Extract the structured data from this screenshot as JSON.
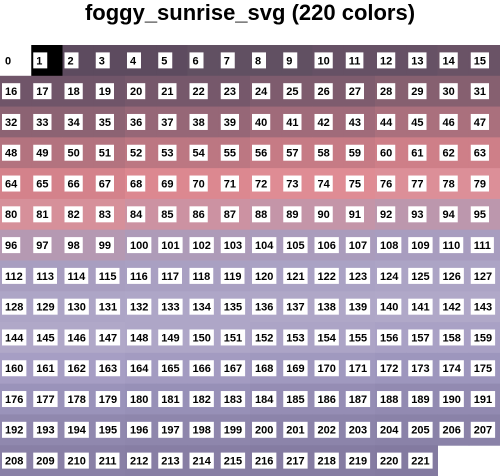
{
  "title": "foggy_sunrise_svg (220 colors)",
  "cells": {
    "labels": [
      0,
      1,
      2,
      3,
      4,
      5,
      6,
      7,
      8,
      9,
      10,
      11,
      12,
      13,
      14,
      15,
      16,
      17,
      18,
      19,
      20,
      21,
      22,
      23,
      24,
      25,
      26,
      27,
      28,
      29,
      30,
      31,
      32,
      33,
      34,
      35,
      36,
      37,
      38,
      39,
      40,
      41,
      42,
      43,
      44,
      45,
      46,
      47,
      48,
      49,
      50,
      51,
      52,
      53,
      54,
      55,
      56,
      57,
      58,
      59,
      60,
      61,
      62,
      63,
      64,
      65,
      66,
      67,
      68,
      69,
      70,
      71,
      72,
      73,
      74,
      75,
      76,
      77,
      78,
      79,
      80,
      81,
      82,
      83,
      84,
      85,
      86,
      87,
      88,
      89,
      90,
      91,
      92,
      93,
      94,
      95,
      96,
      97,
      98,
      99,
      100,
      101,
      102,
      103,
      104,
      105,
      106,
      107,
      108,
      109,
      110,
      111,
      112,
      113,
      114,
      115,
      116,
      117,
      118,
      119,
      120,
      121,
      122,
      123,
      124,
      125,
      126,
      127,
      128,
      129,
      130,
      131,
      132,
      133,
      134,
      135,
      136,
      137,
      138,
      139,
      140,
      141,
      142,
      143,
      144,
      145,
      146,
      147,
      148,
      149,
      150,
      151,
      152,
      153,
      154,
      155,
      156,
      157,
      158,
      159,
      160,
      161,
      162,
      163,
      164,
      165,
      166,
      167,
      168,
      169,
      170,
      171,
      172,
      173,
      174,
      175,
      176,
      177,
      178,
      179,
      180,
      181,
      182,
      183,
      184,
      185,
      186,
      187,
      188,
      189,
      190,
      191,
      192,
      193,
      194,
      195,
      196,
      197,
      198,
      199,
      200,
      201,
      202,
      203,
      204,
      205,
      206,
      207,
      208,
      209,
      210,
      211,
      212,
      213,
      214,
      215,
      216,
      217,
      218,
      219,
      220,
      221
    ],
    "colors": [
      "#ffffff",
      "#000000",
      "#5d4b5f",
      "#5d4b5f",
      "#5d4b5f",
      "#5d4b5f",
      "#615062",
      "#615062",
      "#615062",
      "#615062",
      "#665165",
      "#665165",
      "#665165",
      "#665165",
      "#6a5366",
      "#6a5366",
      "#705569",
      "#705569",
      "#705569",
      "#705569",
      "#76586b",
      "#76586b",
      "#76586b",
      "#76586b",
      "#7e5c6e",
      "#7e5c6e",
      "#7e5c6e",
      "#7e5c6e",
      "#866070",
      "#866070",
      "#866070",
      "#866070",
      "#8c6373",
      "#8c6373",
      "#8c6373",
      "#8c6373",
      "#966777",
      "#966777",
      "#966777",
      "#966777",
      "#a06b7a",
      "#a06b7a",
      "#a06b7a",
      "#a06b7a",
      "#aa707d",
      "#aa707d",
      "#aa707d",
      "#aa707d",
      "#b3737f",
      "#b3737f",
      "#b3737f",
      "#b3737f",
      "#bc7782",
      "#bc7782",
      "#bc7782",
      "#bc7782",
      "#c67b85",
      "#c67b85",
      "#c67b85",
      "#c67b85",
      "#ce7f88",
      "#ce7f88",
      "#ce7f88",
      "#ce7f88",
      "#d4828b",
      "#d4828b",
      "#d4828b",
      "#d4828b",
      "#dc8890",
      "#dc8890",
      "#dc8890",
      "#dc8890",
      "#df8c94",
      "#df8c94",
      "#df8c94",
      "#df8c94",
      "#dc8f98",
      "#dc8f98",
      "#dc8f98",
      "#dc8f98",
      "#d6909a",
      "#d6909a",
      "#d6909a",
      "#d6909a",
      "#cc92a2",
      "#cc92a2",
      "#cc92a2",
      "#cc92a2",
      "#c495a8",
      "#c495a8",
      "#c495a8",
      "#c495a8",
      "#bc97ad",
      "#bc97ad",
      "#bc97ad",
      "#bc97ad",
      "#b599b2",
      "#b599b2",
      "#b599b2",
      "#b599b2",
      "#ae9bb8",
      "#ae9bb8",
      "#ae9bb8",
      "#ae9bb8",
      "#aa9cbc",
      "#aa9cbc",
      "#aa9cbc",
      "#aa9cbc",
      "#a89dbf",
      "#a89dbf",
      "#a89dbf",
      "#a89dbf",
      "#a89ec0",
      "#a89ec0",
      "#a89ec0",
      "#a89ec0",
      "#a9a0c2",
      "#a9a0c2",
      "#a9a0c2",
      "#a9a0c2",
      "#aaa2c4",
      "#aaa2c4",
      "#aaa2c4",
      "#aaa2c4",
      "#aca4c5",
      "#aca4c5",
      "#aca4c5",
      "#aca4c5",
      "#ada5c6",
      "#ada5c6",
      "#ada5c6",
      "#ada5c6",
      "#aea6c7",
      "#aea6c7",
      "#aea6c7",
      "#aea6c7",
      "#afa7c7",
      "#afa7c7",
      "#afa7c7",
      "#afa7c7",
      "#b0a8c8",
      "#b0a8c8",
      "#b0a8c8",
      "#b0a8c8",
      "#b0a8c8",
      "#b0a8c8",
      "#b0a8c8",
      "#b0a8c8",
      "#aea6c7",
      "#aea6c7",
      "#aea6c7",
      "#aea6c7",
      "#aca4c6",
      "#aca4c6",
      "#aca4c6",
      "#aca4c6",
      "#a9a1c5",
      "#a9a1c5",
      "#a9a1c5",
      "#a9a1c5",
      "#a69ec4",
      "#a69ec4",
      "#a69ec4",
      "#a69ec4",
      "#a39bc1",
      "#a39bc1",
      "#a39bc1",
      "#a39bc1",
      "#a099bf",
      "#a099bf",
      "#a099bf",
      "#a099bf",
      "#9d96bd",
      "#9d96bd",
      "#9d96bd",
      "#9d96bd",
      "#9a93ba",
      "#9a93ba",
      "#9a93ba",
      "#9a93ba",
      "#9790b7",
      "#9790b7",
      "#9790b7",
      "#9790b7",
      "#958db4",
      "#958db4",
      "#958db4",
      "#958db4",
      "#928ab1",
      "#928ab1",
      "#928ab1",
      "#928ab1",
      "#9088ae",
      "#9088ae",
      "#9088ae",
      "#9088ae",
      "#8e86ac",
      "#8e86ac",
      "#8e86ac",
      "#8e86ac",
      "#8c84aa",
      "#8c84aa",
      "#8c84aa",
      "#8c84aa",
      "#8a82a8",
      "#8a82a8",
      "#8a82a8",
      "#8a82a8",
      "#8980a6",
      "#8980a6",
      "#8980a6",
      "#8980a6",
      "#877ea4",
      "#877ea4",
      "#877ea4",
      "#877ea4",
      "#857ca2",
      "#857ca2",
      "#857ca2",
      "#857ca2",
      "#837aa0",
      "#837aa0"
    ]
  }
}
